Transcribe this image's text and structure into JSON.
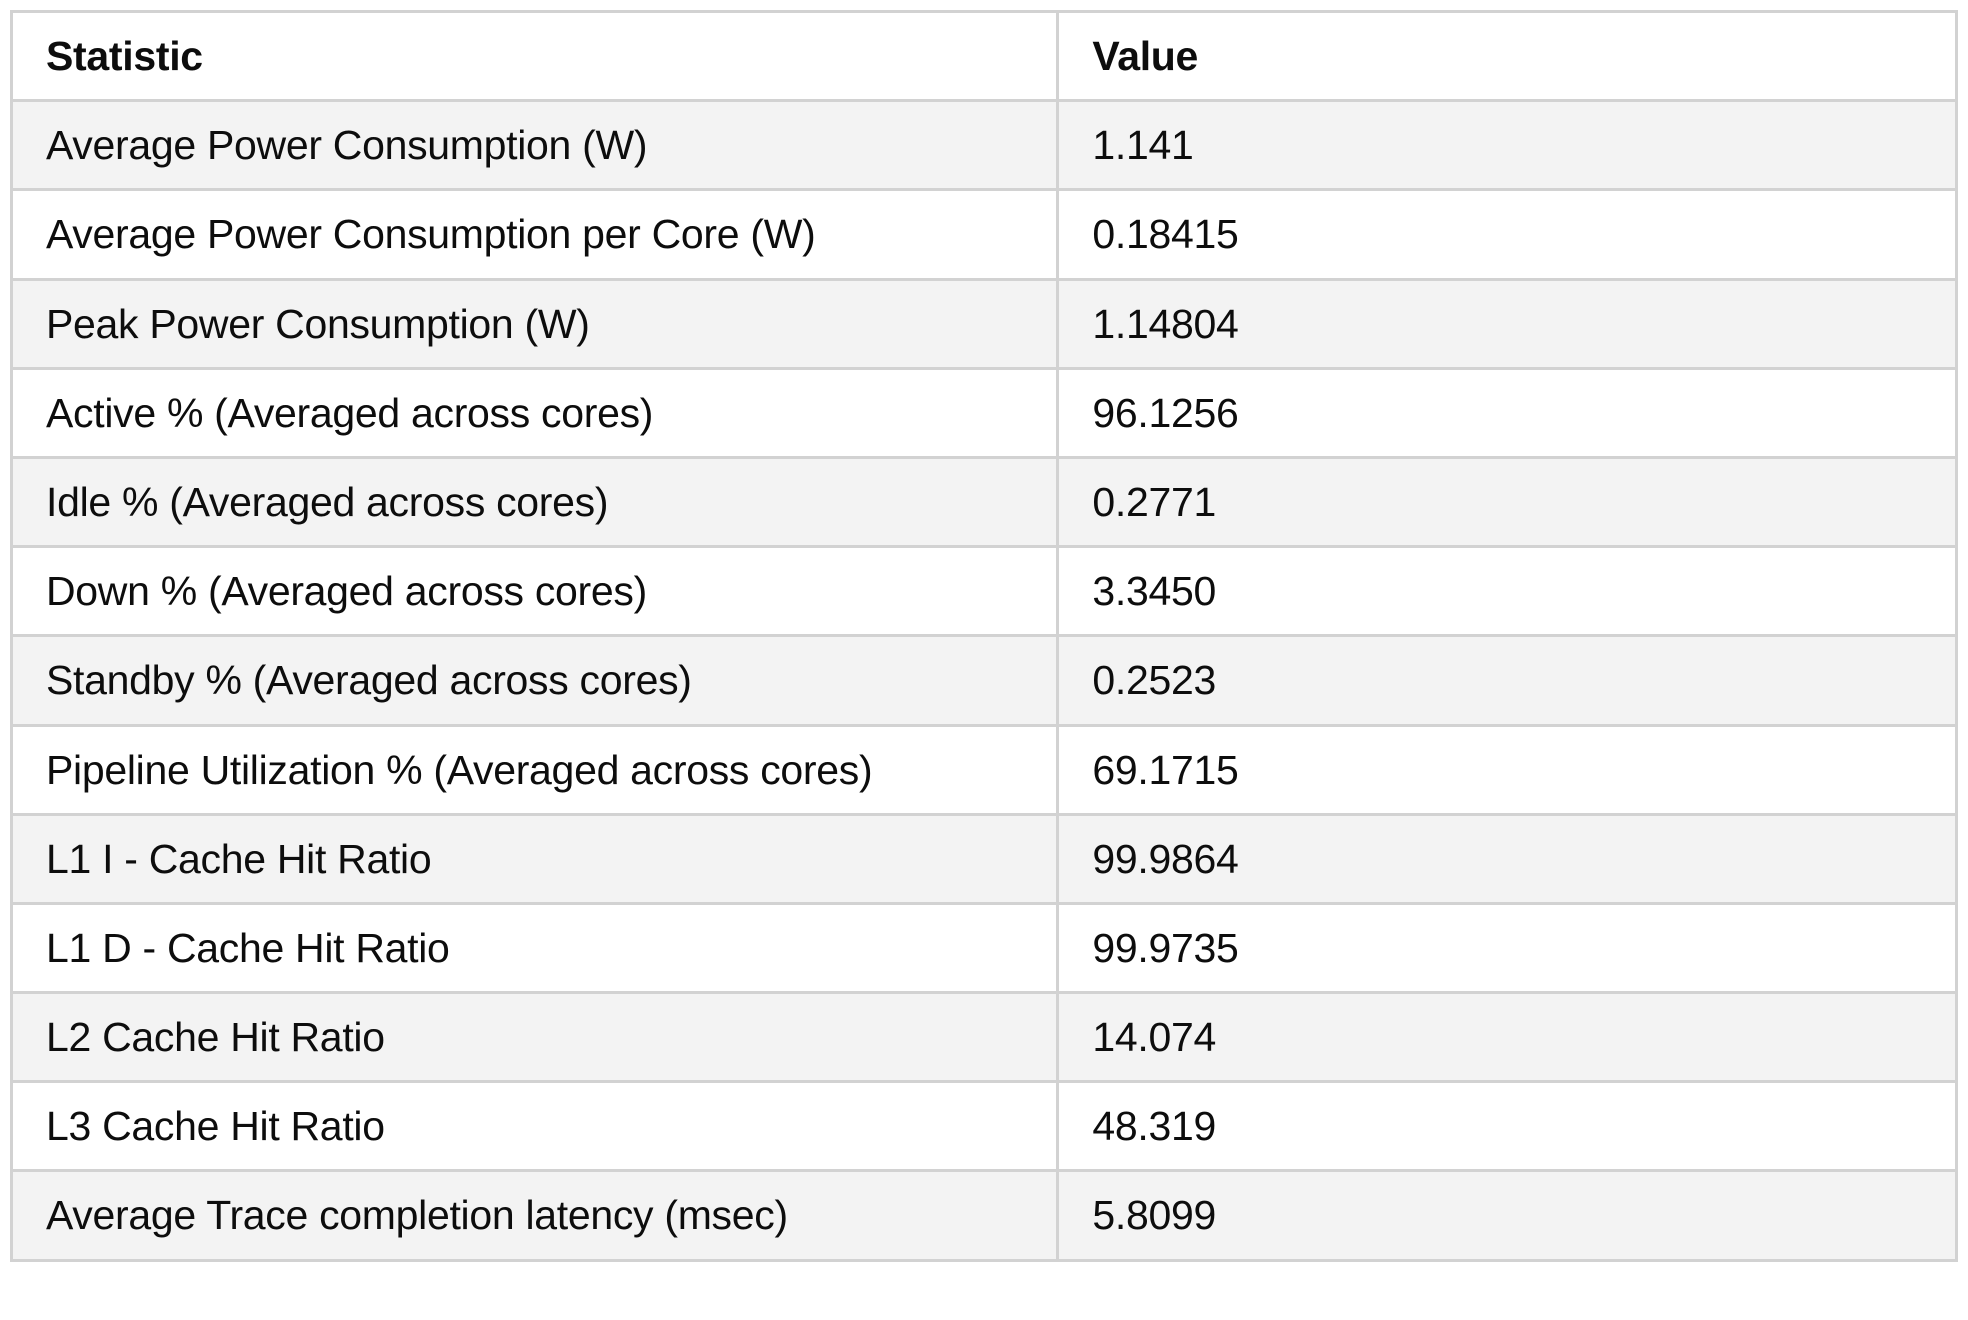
{
  "table": {
    "columns": [
      "Statistic",
      "Value"
    ],
    "rows": [
      {
        "statistic": "Average Power Consumption (W)",
        "value": "1.141"
      },
      {
        "statistic": "Average Power Consumption per Core (W)",
        "value": "0.18415"
      },
      {
        "statistic": "Peak Power Consumption (W)",
        "value": "1.14804"
      },
      {
        "statistic": "Active % (Averaged across cores)",
        "value": "96.1256"
      },
      {
        "statistic": "Idle % (Averaged across cores)",
        "value": "0.2771"
      },
      {
        "statistic": "Down % (Averaged across cores)",
        "value": "3.3450"
      },
      {
        "statistic": "Standby % (Averaged across cores)",
        "value": "0.2523"
      },
      {
        "statistic": "Pipeline Utilization % (Averaged across cores)",
        "value": "69.1715"
      },
      {
        "statistic": "L1 I - Cache Hit Ratio",
        "value": "99.9864"
      },
      {
        "statistic": "L1 D - Cache Hit Ratio",
        "value": "99.9735"
      },
      {
        "statistic": "L2 Cache Hit Ratio",
        "value": "14.074"
      },
      {
        "statistic": "L3 Cache Hit Ratio",
        "value": "48.319"
      },
      {
        "statistic": "Average Trace completion latency (msec)",
        "value": "5.8099"
      }
    ]
  },
  "colors": {
    "row_shade": "#f3f3f3",
    "border": "#d2d2d2",
    "text": "#0d0d0d",
    "background": "#ffffff"
  }
}
